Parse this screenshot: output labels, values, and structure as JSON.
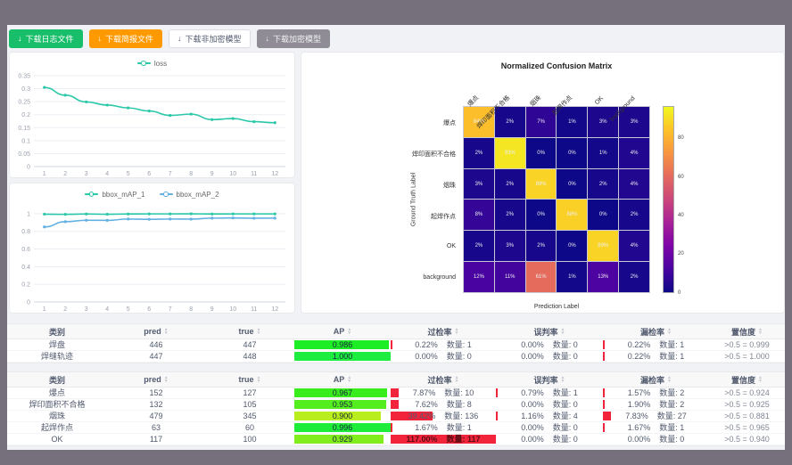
{
  "toolbar": {
    "buttons": [
      {
        "label": "下载日志文件",
        "variant": "success"
      },
      {
        "label": "下载简报文件",
        "variant": "warning"
      },
      {
        "label": "下载非加密模型",
        "variant": "default"
      },
      {
        "label": "下载加密模型",
        "variant": "disabled"
      }
    ]
  },
  "chart_data": [
    {
      "type": "line",
      "name": "loss-chart",
      "x": [
        1,
        2,
        3,
        4,
        5,
        6,
        7,
        8,
        9,
        10,
        11,
        12
      ],
      "yticks": [
        0,
        0.05,
        0.1,
        0.15,
        0.2,
        0.25,
        0.3,
        0.35
      ],
      "ylim": [
        0,
        0.35
      ],
      "legend_position": "top",
      "grid": true,
      "series": [
        {
          "name": "loss",
          "color": "#2bc7a9",
          "values": [
            0.305,
            0.275,
            0.249,
            0.237,
            0.226,
            0.214,
            0.197,
            0.202,
            0.181,
            0.185,
            0.173,
            0.169
          ]
        }
      ]
    },
    {
      "type": "line",
      "name": "map-chart",
      "x": [
        1,
        2,
        3,
        4,
        5,
        6,
        7,
        8,
        9,
        10,
        11,
        12
      ],
      "yticks": [
        0,
        0.2,
        0.4,
        0.6,
        0.8,
        1
      ],
      "ylim": [
        0,
        1.08
      ],
      "legend_position": "top",
      "grid": true,
      "series": [
        {
          "name": "bbox_mAP_1",
          "color": "#2bc7a9",
          "values": [
            0.995,
            0.993,
            0.997,
            0.994,
            0.997,
            0.998,
            0.998,
            0.999,
            0.997,
            0.998,
            0.998,
            0.998
          ]
        },
        {
          "name": "bbox_mAP_2",
          "color": "#63b0e3",
          "values": [
            0.85,
            0.91,
            0.926,
            0.925,
            0.94,
            0.937,
            0.94,
            0.939,
            0.95,
            0.952,
            0.949,
            0.95
          ]
        }
      ]
    },
    {
      "type": "heatmap",
      "name": "confusion-matrix",
      "title": "Normalized Confusion Matrix",
      "xlabel": "Prediction Label",
      "ylabel": "Ground Truth Label",
      "labels": [
        "爆点",
        "焊印面积不合格",
        "烟珠",
        "起焊作点",
        "OK",
        "background"
      ],
      "unit": "%",
      "matrix": [
        [
          84,
          2,
          7,
          1,
          3,
          3
        ],
        [
          2,
          93,
          0,
          0,
          1,
          4
        ],
        [
          3,
          2,
          89,
          0,
          2,
          4
        ],
        [
          8,
          2,
          0,
          88,
          0,
          2
        ],
        [
          2,
          3,
          2,
          0,
          89,
          4
        ],
        [
          12,
          11,
          61,
          1,
          13,
          2
        ]
      ],
      "colorbar_ticks": [
        0,
        20,
        40,
        60,
        80
      ],
      "vmax": 97,
      "colormap": "plasma"
    }
  ],
  "tables": [
    {
      "headers": [
        {
          "label": "类别",
          "sortable": false
        },
        {
          "label": "pred",
          "sortable": true
        },
        {
          "label": "true",
          "sortable": true
        },
        {
          "label": "AP",
          "sortable": true
        },
        {
          "label": "过检率",
          "sortable": true
        },
        {
          "label": "误判率",
          "sortable": true
        },
        {
          "label": "漏检率",
          "sortable": true
        },
        {
          "label": "置信度",
          "sortable": true
        }
      ],
      "rows": [
        {
          "class": "焊盘",
          "pred": "446",
          "true": "447",
          "ap": 0.986,
          "ap_text": "0.986",
          "over": {
            "pct": 0.22,
            "text": "0.22%",
            "count": "数量: 1"
          },
          "mis": {
            "pct": 0.0,
            "text": "0.00%",
            "count": "数量: 0"
          },
          "miss": {
            "pct": 0.22,
            "text": "0.22%",
            "count": "数量: 1"
          },
          "conf": ">0.5 = 0.999"
        },
        {
          "class": "焊缝轨迹",
          "pred": "447",
          "true": "448",
          "ap": 1.0,
          "ap_text": "1.000",
          "over": {
            "pct": 0.0,
            "text": "0.00%",
            "count": "数量: 0"
          },
          "mis": {
            "pct": 0.0,
            "text": "0.00%",
            "count": "数量: 0"
          },
          "miss": {
            "pct": 0.22,
            "text": "0.22%",
            "count": "数量: 1"
          },
          "conf": ">0.5 = 1.000"
        }
      ]
    },
    {
      "headers": [
        {
          "label": "类别",
          "sortable": false
        },
        {
          "label": "pred",
          "sortable": true
        },
        {
          "label": "true",
          "sortable": true
        },
        {
          "label": "AP",
          "sortable": true
        },
        {
          "label": "过检率",
          "sortable": true
        },
        {
          "label": "误判率",
          "sortable": true
        },
        {
          "label": "漏检率",
          "sortable": true
        },
        {
          "label": "置信度",
          "sortable": true
        }
      ],
      "rows": [
        {
          "class": "爆点",
          "pred": "152",
          "true": "127",
          "ap": 0.967,
          "ap_text": "0.967",
          "over": {
            "pct": 7.87,
            "text": "7.87%",
            "count": "数量: 10"
          },
          "mis": {
            "pct": 0.79,
            "text": "0.79%",
            "count": "数量: 1"
          },
          "miss": {
            "pct": 1.57,
            "text": "1.57%",
            "count": "数量: 2"
          },
          "conf": ">0.5 = 0.924"
        },
        {
          "class": "焊印面积不合格",
          "pred": "132",
          "true": "105",
          "ap": 0.953,
          "ap_text": "0.953",
          "over": {
            "pct": 7.62,
            "text": "7.62%",
            "count": "数量: 8"
          },
          "mis": {
            "pct": 0.0,
            "text": "0.00%",
            "count": "数量: 0"
          },
          "miss": {
            "pct": 1.9,
            "text": "1.90%",
            "count": "数量: 2"
          },
          "conf": ">0.5 = 0.925"
        },
        {
          "class": "烟珠",
          "pred": "479",
          "true": "345",
          "ap": 0.9,
          "ap_text": "0.900",
          "over": {
            "pct": 39.42,
            "text": "39.42%",
            "count": "数量: 136"
          },
          "mis": {
            "pct": 1.16,
            "text": "1.16%",
            "count": "数量: 4"
          },
          "miss": {
            "pct": 7.83,
            "text": "7.83%",
            "count": "数量: 27"
          },
          "conf": ">0.5 = 0.881"
        },
        {
          "class": "起焊作点",
          "pred": "63",
          "true": "60",
          "ap": 0.996,
          "ap_text": "0.996",
          "over": {
            "pct": 1.67,
            "text": "1.67%",
            "count": "数量: 1"
          },
          "mis": {
            "pct": 0.0,
            "text": "0.00%",
            "count": "数量: 0"
          },
          "miss": {
            "pct": 1.67,
            "text": "1.67%",
            "count": "数量: 1"
          },
          "conf": ">0.5 = 0.965"
        },
        {
          "class": "OK",
          "pred": "117",
          "true": "100",
          "ap": 0.929,
          "ap_text": "0.929",
          "over": {
            "pct": 117.0,
            "text": "117.00%",
            "count": "数量: 117"
          },
          "mis": {
            "pct": 0.0,
            "text": "0.00%",
            "count": "数量: 0"
          },
          "miss": {
            "pct": 0.0,
            "text": "0.00%",
            "count": "数量: 0"
          },
          "conf": ">0.5 = 0.940"
        }
      ]
    }
  ],
  "colors": {
    "frame_bg": "#76707d",
    "content_bg": "#f0f2f5",
    "success": "#19be6b",
    "warning": "#ff9900",
    "rate_bar": "#f1243c",
    "teal_series": "#2bc7a9",
    "blue_series": "#63b0e3"
  }
}
